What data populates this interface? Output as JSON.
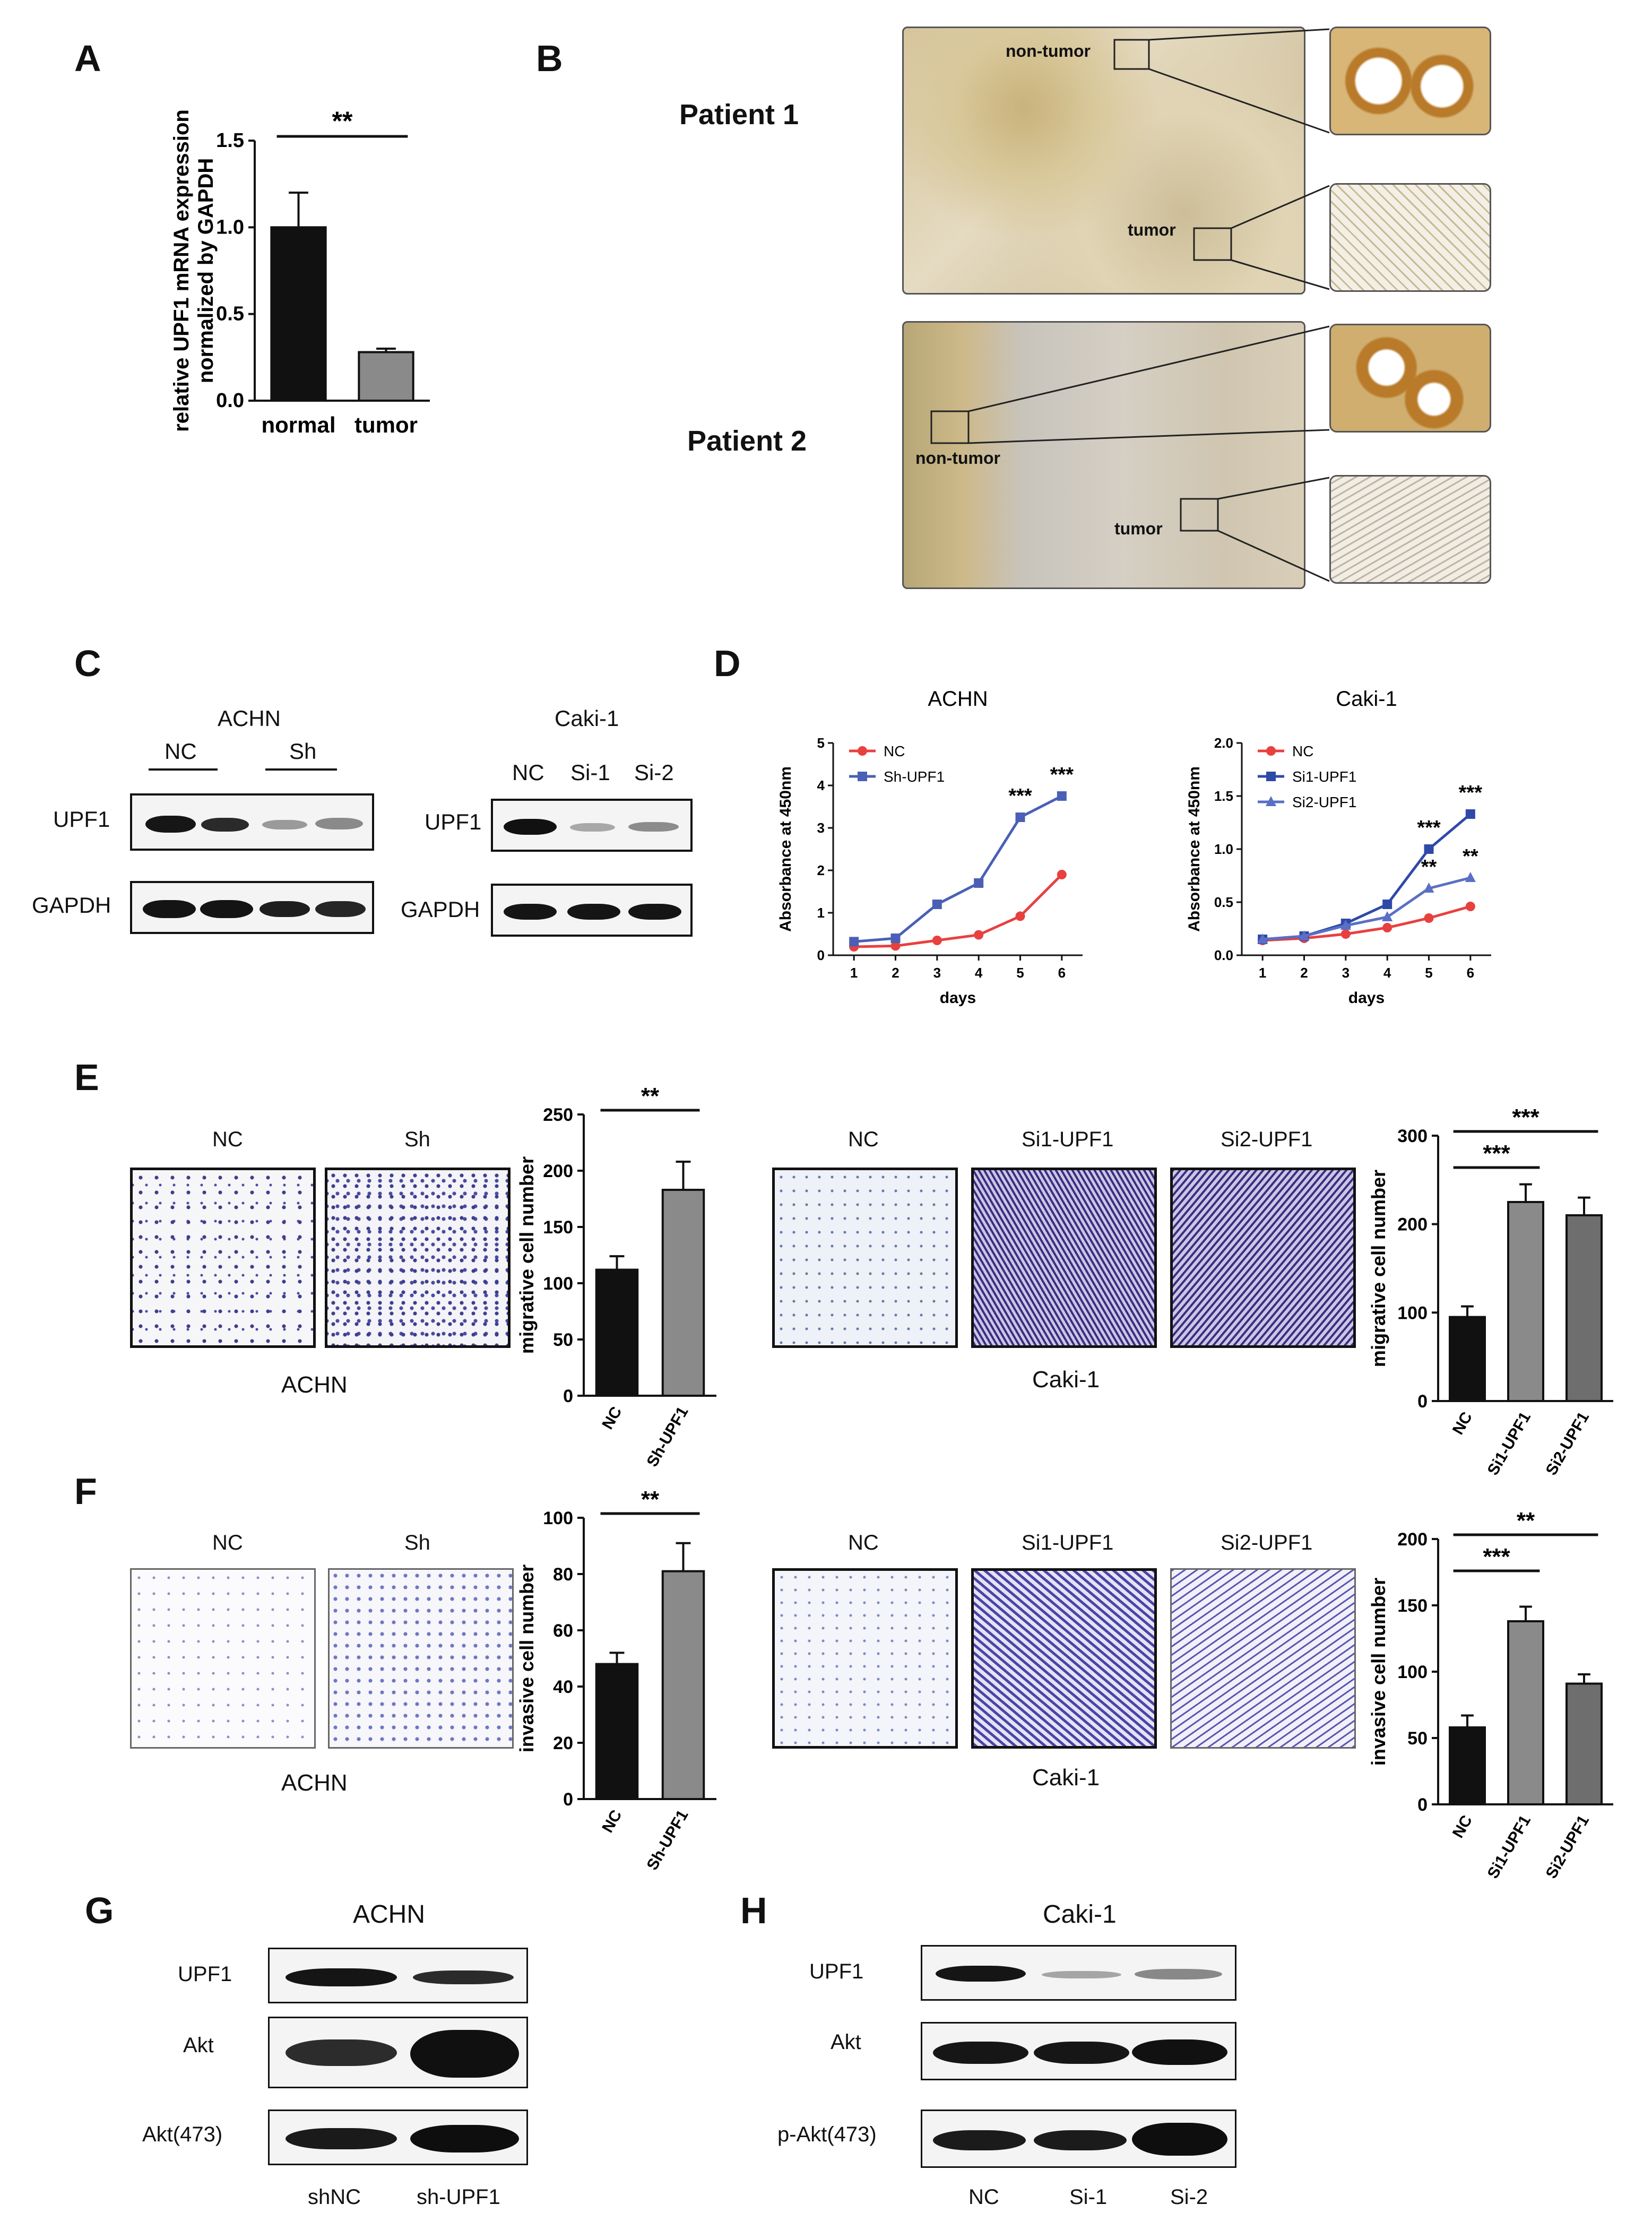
{
  "panels": {
    "A": {
      "letter": "A",
      "chart_data": {
        "type": "bar",
        "categories": [
          "normal",
          "tumor"
        ],
        "values": [
          1.0,
          0.28
        ],
        "errors": [
          0.2,
          0.02
        ],
        "ylabel_line1": "relative UPF1 mRNA expression",
        "ylabel_line2": "normalized by GAPDH",
        "ylim": [
          0,
          1.5
        ],
        "yticks": [
          "0.0",
          "0.5",
          "1.0",
          "1.5"
        ],
        "significance": "**",
        "colors": [
          "#111111",
          "#8a8a8a"
        ]
      }
    },
    "B": {
      "letter": "B",
      "patient1": "Patient 1",
      "patient2": "Patient 2",
      "nontumor": "non-tumor",
      "tumor": "tumor"
    },
    "C": {
      "letter": "C",
      "left_title": "ACHN",
      "left_groups": [
        "NC",
        "Sh"
      ],
      "right_title": "Caki-1",
      "right_lanes": [
        "NC",
        "Si-1",
        "Si-2"
      ],
      "row1": "UPF1",
      "row2": "GAPDH"
    },
    "D": {
      "letter": "D",
      "chart_data": [
        {
          "type": "line",
          "title": "ACHN",
          "xlabel": "days",
          "ylabel": "Absorbance at 450nm",
          "x": [
            1,
            2,
            3,
            4,
            5,
            6
          ],
          "ylim": [
            0,
            5
          ],
          "yticks": [
            "0",
            "1",
            "2",
            "3",
            "4",
            "5"
          ],
          "series": [
            {
              "name": "NC",
              "values": [
                0.2,
                0.22,
                0.35,
                0.48,
                0.92,
                1.9
              ],
              "color": "#e8403f",
              "marker": "circle"
            },
            {
              "name": "Sh-UPF1",
              "values": [
                0.32,
                0.4,
                1.2,
                1.7,
                3.25,
                3.75
              ],
              "color": "#4a5fb5",
              "marker": "square"
            }
          ],
          "annotations": [
            {
              "x": 5,
              "text": "***"
            },
            {
              "x": 6,
              "text": "***"
            }
          ]
        },
        {
          "type": "line",
          "title": "Caki-1",
          "xlabel": "days",
          "ylabel": "Absorbance at 450nm",
          "x": [
            1,
            2,
            3,
            4,
            5,
            6
          ],
          "ylim": [
            0,
            2.0
          ],
          "yticks": [
            "0.0",
            "0.5",
            "1.0",
            "1.5",
            "2.0"
          ],
          "series": [
            {
              "name": "NC",
              "values": [
                0.14,
                0.16,
                0.2,
                0.26,
                0.35,
                0.46
              ],
              "color": "#e8403f",
              "marker": "circle"
            },
            {
              "name": "Si1-UPF1",
              "values": [
                0.15,
                0.18,
                0.3,
                0.48,
                1.0,
                1.33
              ],
              "color": "#2f49a8",
              "marker": "square"
            },
            {
              "name": "Si2-UPF1",
              "values": [
                0.15,
                0.18,
                0.28,
                0.36,
                0.63,
                0.73
              ],
              "color": "#5a6fc5",
              "marker": "triangle"
            }
          ],
          "annotations": [
            {
              "x": 5,
              "y": 1.0,
              "text": "***"
            },
            {
              "x": 5,
              "y": 0.63,
              "text": "**"
            },
            {
              "x": 6,
              "y": 1.33,
              "text": "***"
            },
            {
              "x": 6,
              "y": 0.73,
              "text": "**"
            }
          ]
        }
      ]
    },
    "E": {
      "letter": "E",
      "left_images": [
        "NC",
        "Sh"
      ],
      "left_cell": "ACHN",
      "right_images": [
        "NC",
        "Si1-UPF1",
        "Si2-UPF1"
      ],
      "right_cell": "Caki-1",
      "chart_data": [
        {
          "type": "bar",
          "categories": [
            "NC",
            "Sh-UPF1"
          ],
          "values": [
            112,
            183
          ],
          "errors": [
            12,
            25
          ],
          "ylabel": "migrative cell number",
          "ylim": [
            0,
            250
          ],
          "yticks": [
            "0",
            "50",
            "100",
            "150",
            "200",
            "250"
          ],
          "significance": [
            "**"
          ],
          "colors": [
            "#111111",
            "#8a8a8a"
          ]
        },
        {
          "type": "bar",
          "categories": [
            "NC",
            "Si1-UPF1",
            "Si2-UPF1"
          ],
          "values": [
            95,
            225,
            210
          ],
          "errors": [
            12,
            20,
            20
          ],
          "ylabel": "migrative cell number",
          "ylim": [
            0,
            300
          ],
          "yticks": [
            "0",
            "100",
            "200",
            "300"
          ],
          "significance": [
            "***",
            "***"
          ],
          "colors": [
            "#111111",
            "#8a8a8a",
            "#6e6e6e"
          ]
        }
      ]
    },
    "F": {
      "letter": "F",
      "left_images": [
        "NC",
        "Sh"
      ],
      "left_cell": "ACHN",
      "right_images": [
        "NC",
        "Si1-UPF1",
        "Si2-UPF1"
      ],
      "right_cell": "Caki-1",
      "chart_data": [
        {
          "type": "bar",
          "categories": [
            "NC",
            "Sh-UPF1"
          ],
          "values": [
            48,
            81
          ],
          "errors": [
            4,
            10
          ],
          "ylabel": "invasive cell number",
          "ylim": [
            0,
            100
          ],
          "yticks": [
            "0",
            "20",
            "40",
            "60",
            "80",
            "100"
          ],
          "significance": [
            "**"
          ],
          "colors": [
            "#111111",
            "#8a8a8a"
          ]
        },
        {
          "type": "bar",
          "categories": [
            "NC",
            "Si1-UPF1",
            "Si2-UPF1"
          ],
          "values": [
            58,
            138,
            91
          ],
          "errors": [
            9,
            11,
            7
          ],
          "ylabel": "invasive cell number",
          "ylim": [
            0,
            200
          ],
          "yticks": [
            "0",
            "50",
            "100",
            "150",
            "200"
          ],
          "significance": [
            "***",
            "**"
          ],
          "colors": [
            "#111111",
            "#8a8a8a",
            "#6e6e6e"
          ]
        }
      ]
    },
    "G": {
      "letter": "G",
      "title": "ACHN",
      "rows": [
        "UPF1",
        "Akt",
        "Akt(473)"
      ],
      "lanes": [
        "shNC",
        "sh-UPF1"
      ]
    },
    "H": {
      "letter": "H",
      "title": "Caki-1",
      "rows": [
        "UPF1",
        "Akt",
        "p-Akt(473)"
      ],
      "lanes": [
        "NC",
        "Si-1",
        "Si-2"
      ]
    }
  }
}
